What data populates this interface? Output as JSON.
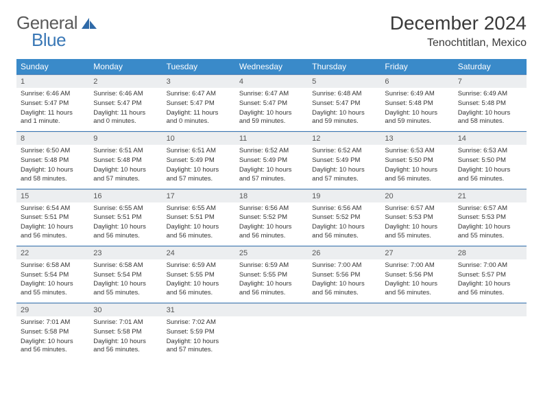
{
  "brand": {
    "main": "General",
    "sub": "Blue"
  },
  "title": "December 2024",
  "location": "Tenochtitlan, Mexico",
  "colors": {
    "header_bg": "#3a8ac9",
    "header_text": "#ffffff",
    "rule": "#3a78b6",
    "daynum_bg": "#eceef0",
    "body_text": "#333333"
  },
  "dow": [
    "Sunday",
    "Monday",
    "Tuesday",
    "Wednesday",
    "Thursday",
    "Friday",
    "Saturday"
  ],
  "weeks": [
    [
      {
        "n": "1",
        "sr": "6:46 AM",
        "ss": "5:47 PM",
        "dl": "11 hours and 1 minute."
      },
      {
        "n": "2",
        "sr": "6:46 AM",
        "ss": "5:47 PM",
        "dl": "11 hours and 0 minutes."
      },
      {
        "n": "3",
        "sr": "6:47 AM",
        "ss": "5:47 PM",
        "dl": "11 hours and 0 minutes."
      },
      {
        "n": "4",
        "sr": "6:47 AM",
        "ss": "5:47 PM",
        "dl": "10 hours and 59 minutes."
      },
      {
        "n": "5",
        "sr": "6:48 AM",
        "ss": "5:47 PM",
        "dl": "10 hours and 59 minutes."
      },
      {
        "n": "6",
        "sr": "6:49 AM",
        "ss": "5:48 PM",
        "dl": "10 hours and 59 minutes."
      },
      {
        "n": "7",
        "sr": "6:49 AM",
        "ss": "5:48 PM",
        "dl": "10 hours and 58 minutes."
      }
    ],
    [
      {
        "n": "8",
        "sr": "6:50 AM",
        "ss": "5:48 PM",
        "dl": "10 hours and 58 minutes."
      },
      {
        "n": "9",
        "sr": "6:51 AM",
        "ss": "5:48 PM",
        "dl": "10 hours and 57 minutes."
      },
      {
        "n": "10",
        "sr": "6:51 AM",
        "ss": "5:49 PM",
        "dl": "10 hours and 57 minutes."
      },
      {
        "n": "11",
        "sr": "6:52 AM",
        "ss": "5:49 PM",
        "dl": "10 hours and 57 minutes."
      },
      {
        "n": "12",
        "sr": "6:52 AM",
        "ss": "5:49 PM",
        "dl": "10 hours and 57 minutes."
      },
      {
        "n": "13",
        "sr": "6:53 AM",
        "ss": "5:50 PM",
        "dl": "10 hours and 56 minutes."
      },
      {
        "n": "14",
        "sr": "6:53 AM",
        "ss": "5:50 PM",
        "dl": "10 hours and 56 minutes."
      }
    ],
    [
      {
        "n": "15",
        "sr": "6:54 AM",
        "ss": "5:51 PM",
        "dl": "10 hours and 56 minutes."
      },
      {
        "n": "16",
        "sr": "6:55 AM",
        "ss": "5:51 PM",
        "dl": "10 hours and 56 minutes."
      },
      {
        "n": "17",
        "sr": "6:55 AM",
        "ss": "5:51 PM",
        "dl": "10 hours and 56 minutes."
      },
      {
        "n": "18",
        "sr": "6:56 AM",
        "ss": "5:52 PM",
        "dl": "10 hours and 56 minutes."
      },
      {
        "n": "19",
        "sr": "6:56 AM",
        "ss": "5:52 PM",
        "dl": "10 hours and 56 minutes."
      },
      {
        "n": "20",
        "sr": "6:57 AM",
        "ss": "5:53 PM",
        "dl": "10 hours and 55 minutes."
      },
      {
        "n": "21",
        "sr": "6:57 AM",
        "ss": "5:53 PM",
        "dl": "10 hours and 55 minutes."
      }
    ],
    [
      {
        "n": "22",
        "sr": "6:58 AM",
        "ss": "5:54 PM",
        "dl": "10 hours and 55 minutes."
      },
      {
        "n": "23",
        "sr": "6:58 AM",
        "ss": "5:54 PM",
        "dl": "10 hours and 55 minutes."
      },
      {
        "n": "24",
        "sr": "6:59 AM",
        "ss": "5:55 PM",
        "dl": "10 hours and 56 minutes."
      },
      {
        "n": "25",
        "sr": "6:59 AM",
        "ss": "5:55 PM",
        "dl": "10 hours and 56 minutes."
      },
      {
        "n": "26",
        "sr": "7:00 AM",
        "ss": "5:56 PM",
        "dl": "10 hours and 56 minutes."
      },
      {
        "n": "27",
        "sr": "7:00 AM",
        "ss": "5:56 PM",
        "dl": "10 hours and 56 minutes."
      },
      {
        "n": "28",
        "sr": "7:00 AM",
        "ss": "5:57 PM",
        "dl": "10 hours and 56 minutes."
      }
    ],
    [
      {
        "n": "29",
        "sr": "7:01 AM",
        "ss": "5:58 PM",
        "dl": "10 hours and 56 minutes."
      },
      {
        "n": "30",
        "sr": "7:01 AM",
        "ss": "5:58 PM",
        "dl": "10 hours and 56 minutes."
      },
      {
        "n": "31",
        "sr": "7:02 AM",
        "ss": "5:59 PM",
        "dl": "10 hours and 57 minutes."
      },
      null,
      null,
      null,
      null
    ]
  ],
  "labels": {
    "sunrise": "Sunrise: ",
    "sunset": "Sunset: ",
    "daylight": "Daylight: "
  }
}
